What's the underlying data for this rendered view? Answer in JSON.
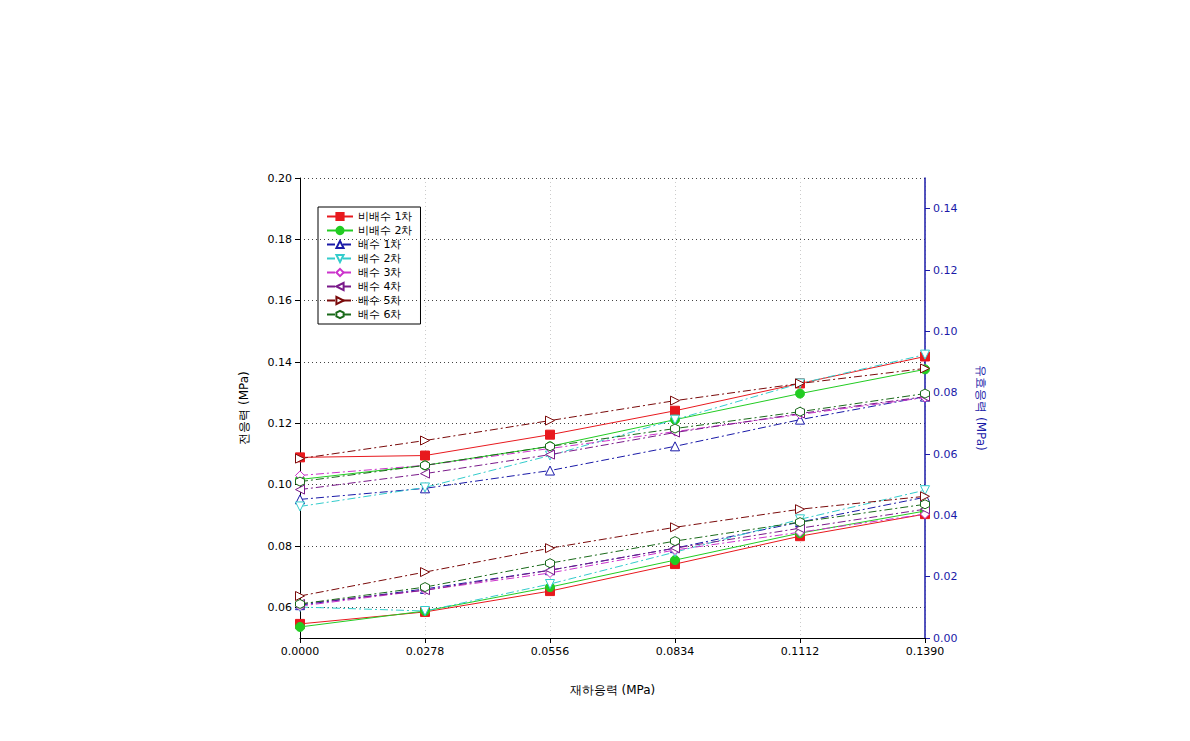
{
  "chart_data": {
    "type": "line",
    "x_label": "재하응력 (MPa)",
    "y_label": "전응력 (MPa)",
    "y2_label": "유효응력 (MPa)",
    "x": [
      0,
      0.0278,
      0.0556,
      0.0834,
      0.1112,
      0.139
    ],
    "xlim": [
      0,
      0.139
    ],
    "xticks": [
      {
        "value": 0,
        "label": "0.0000"
      },
      {
        "value": 0.0278,
        "label": "0.0278"
      },
      {
        "value": 0.0556,
        "label": "0.0556"
      },
      {
        "value": 0.0834,
        "label": "0.0834"
      },
      {
        "value": 0.1112,
        "label": "0.1112"
      },
      {
        "value": 0.139,
        "label": "0.1390"
      }
    ],
    "ylim": [
      0.05,
      0.2
    ],
    "yticks": [
      0.06,
      0.08,
      {
        "value": 0.1,
        "label": "0.10"
      },
      0.12,
      0.14,
      0.16,
      0.18,
      {
        "value": 0.2,
        "label": "0.20"
      }
    ],
    "y2lim": [
      0,
      0.15
    ],
    "y2ticks": [
      {
        "value": 0,
        "label": "0.00"
      },
      0.02,
      0.04,
      0.06,
      0.08,
      {
        "value": 0.1,
        "label": "0.10"
      },
      0.12,
      0.14
    ],
    "grid": true,
    "legend": "top-left",
    "series": [
      {
        "name": "비배수 1차",
        "color": "#e8191e",
        "marker": "square",
        "line_style": "solid",
        "axis": "y",
        "values": [
          0.1089,
          0.1095,
          0.1163,
          0.1241,
          0.133,
          0.1418
        ]
      },
      {
        "name": "비배수 2차",
        "color": "#22cc22",
        "marker": "circle",
        "line_style": "solid",
        "axis": "y",
        "values": [
          0.1017,
          0.1063,
          0.1125,
          0.1212,
          0.1297,
          0.1376
        ]
      },
      {
        "name": "배수 1차",
        "color": "#1a1aa8",
        "marker": "triangle-open",
        "line_style": "dashdot",
        "axis": "y",
        "values": [
          0.0952,
          0.0988,
          0.1046,
          0.1125,
          0.1212,
          0.1287
        ]
      },
      {
        "name": "배수 2차",
        "color": "#33cccc",
        "marker": "triangle-down-open",
        "line_style": "dashdot",
        "axis": "y",
        "values": [
          0.0929,
          0.0991,
          0.1095,
          0.1212,
          0.133,
          0.1424
        ]
      },
      {
        "name": "배수 3차",
        "color": "#cc33cc",
        "marker": "diamond-open",
        "line_style": "dashdot",
        "axis": "y",
        "values": [
          0.103,
          0.1063,
          0.1118,
          0.1173,
          0.1229,
          0.1284
        ]
      },
      {
        "name": "배수 4차",
        "color": "#7a1a8a",
        "marker": "triangle-left-open",
        "line_style": "dashdot",
        "axis": "y",
        "values": [
          0.0984,
          0.1036,
          0.1098,
          0.117,
          0.1232,
          0.1287
        ]
      },
      {
        "name": "배수 5차",
        "color": "#7a0a0a",
        "marker": "triangle-right-open",
        "line_style": "dashdot",
        "axis": "y",
        "values": [
          0.1085,
          0.1144,
          0.1209,
          0.1274,
          0.133,
          0.1379
        ]
      },
      {
        "name": "배수 6차",
        "color": "#1a6a1a",
        "marker": "hexagon-open",
        "line_style": "dashdot",
        "axis": "y",
        "values": [
          0.101,
          0.1063,
          0.1125,
          0.1183,
          0.1238,
          0.1297
        ]
      },
      {
        "name": "비배수 1차",
        "color": "#e8191e",
        "marker": "square",
        "line_style": "solid",
        "axis": "y2",
        "values": [
          0.0046,
          0.0085,
          0.0153,
          0.0241,
          0.0332,
          0.0404
        ]
      },
      {
        "name": "비배수 2차",
        "color": "#22cc22",
        "marker": "circle",
        "line_style": "solid",
        "axis": "y2",
        "values": [
          0.0036,
          0.0088,
          0.0166,
          0.0254,
          0.0342,
          0.0414
        ]
      },
      {
        "name": "배수 1차",
        "color": "#1a1aa8",
        "marker": "triangle-open",
        "line_style": "dashdot",
        "axis": "y2",
        "values": [
          0.0107,
          0.016,
          0.0221,
          0.0293,
          0.0378,
          0.0459
        ]
      },
      {
        "name": "배수 2차",
        "color": "#33cccc",
        "marker": "triangle-down-open",
        "line_style": "dashdot",
        "axis": "y2",
        "values": [
          0.0101,
          0.0088,
          0.0176,
          0.028,
          0.0387,
          0.0482
        ]
      },
      {
        "name": "배수 3차",
        "color": "#cc33cc",
        "marker": "diamond-open",
        "line_style": "dashdot",
        "axis": "y2",
        "values": [
          0.0104,
          0.0156,
          0.0212,
          0.0287,
          0.0345,
          0.0404
        ]
      },
      {
        "name": "배수 4차",
        "color": "#7a1a8a",
        "marker": "triangle-left-open",
        "line_style": "dashdot",
        "axis": "y2",
        "values": [
          0.0111,
          0.0156,
          0.0221,
          0.0293,
          0.0358,
          0.042
        ]
      },
      {
        "name": "배수 5차",
        "color": "#7a0a0a",
        "marker": "triangle-right-open",
        "line_style": "dashdot",
        "axis": "y2",
        "values": [
          0.0137,
          0.0215,
          0.0293,
          0.0361,
          0.042,
          0.0462
        ]
      },
      {
        "name": "배수 6차",
        "color": "#1a6a1a",
        "marker": "hexagon-open",
        "line_style": "dashdot",
        "axis": "y2",
        "values": [
          0.0111,
          0.0166,
          0.0244,
          0.0316,
          0.0378,
          0.0436
        ]
      }
    ]
  }
}
